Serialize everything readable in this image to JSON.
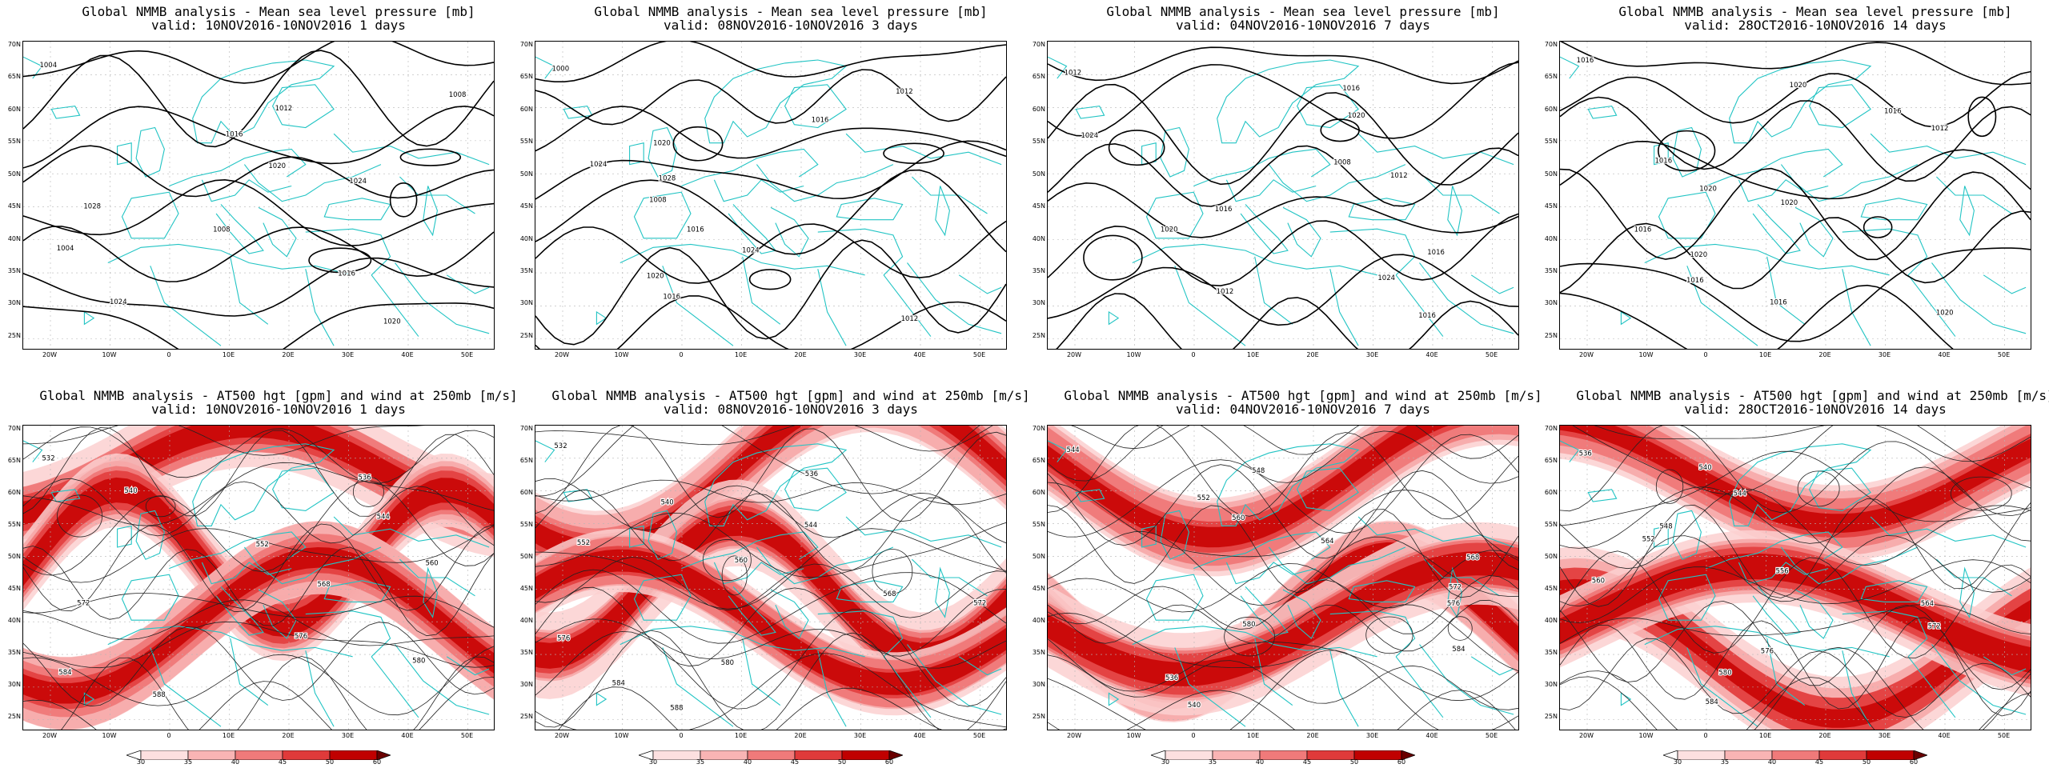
{
  "colors": {
    "coast": "#22c4c4",
    "contour": "#000000",
    "wind_fill": "#e8151b",
    "grid": "#b5b5b5"
  },
  "axes": {
    "lat_labels": [
      "70N",
      "65N",
      "60N",
      "55N",
      "50N",
      "45N",
      "40N",
      "35N",
      "30N",
      "25N"
    ],
    "lon_labels": [
      "20W",
      "10W",
      "0",
      "10E",
      "20E",
      "30E",
      "40E",
      "50E"
    ]
  },
  "top_row": [
    {
      "title": "Global NMMB analysis - Mean sea level pressure [mb]",
      "subtitle": "valid: 10NOV2016-10NOV2016   1 days",
      "labels": [
        "1004",
        "1008",
        "1012",
        "1016",
        "1020",
        "1024",
        "1028",
        "1008",
        "1004",
        "1016",
        "1024",
        "1020"
      ]
    },
    {
      "title": "Global NMMB analysis - Mean sea level pressure [mb]",
      "subtitle": "valid: 08NOV2016-10NOV2016   3 days",
      "labels": [
        "1000",
        "1012",
        "1016",
        "1020",
        "1024",
        "1028",
        "1008",
        "1016",
        "1024",
        "1020",
        "1016",
        "1012"
      ]
    },
    {
      "title": "Global NMMB analysis - Mean sea level pressure [mb]",
      "subtitle": "valid: 04NOV2016-10NOV2016   7 days",
      "labels": [
        "1012",
        "1016",
        "1020",
        "1024",
        "1008",
        "1012",
        "1016",
        "1020",
        "1016",
        "1024",
        "1012",
        "1016"
      ]
    },
    {
      "title": "Global NMMB analysis - Mean sea level pressure [mb]",
      "subtitle": "valid: 28OCT2016-10NOV2016  14 days",
      "labels": [
        "1016",
        "1020",
        "1016",
        "1012",
        "1016",
        "1020",
        "1020",
        "1016",
        "1020",
        "1016",
        "1016",
        "1020"
      ]
    }
  ],
  "bottom_row": [
    {
      "title": "Global NMMB analysis - AT500 hgt [gpm] and wind at 250mb [m/s]",
      "subtitle": "valid: 10NOV2016-10NOV2016   1 days",
      "labels": [
        "532",
        "536",
        "540",
        "544",
        "552",
        "560",
        "568",
        "572",
        "576",
        "580",
        "584",
        "588"
      ]
    },
    {
      "title": "Global NMMB analysis - AT500 hgt [gpm] and wind at 250mb [m/s]",
      "subtitle": "valid: 08NOV2016-10NOV2016   3 days",
      "labels": [
        "532",
        "536",
        "540",
        "544",
        "552",
        "560",
        "568",
        "572",
        "576",
        "580",
        "584",
        "588"
      ]
    },
    {
      "title": "Global NMMB analysis - AT500 hgt [gpm] and wind at 250mb [m/s]",
      "subtitle": "valid: 04NOV2016-10NOV2016   7 days",
      "labels": [
        "544",
        "548",
        "552",
        "560",
        "564",
        "568",
        "572",
        "576",
        "580",
        "584",
        "536",
        "540"
      ]
    },
    {
      "title": "Global NMMB analysis - AT500 hgt [gpm] and wind at 250mb [m/s]",
      "subtitle": "valid: 28OCT2016-10NOV2016  14 days",
      "labels": [
        "536",
        "540",
        "544",
        "548",
        "552",
        "556",
        "560",
        "564",
        "572",
        "576",
        "580",
        "584"
      ]
    }
  ],
  "colorbar": {
    "labels": [
      "30",
      "35",
      "40",
      "45",
      "50",
      "60"
    ]
  }
}
